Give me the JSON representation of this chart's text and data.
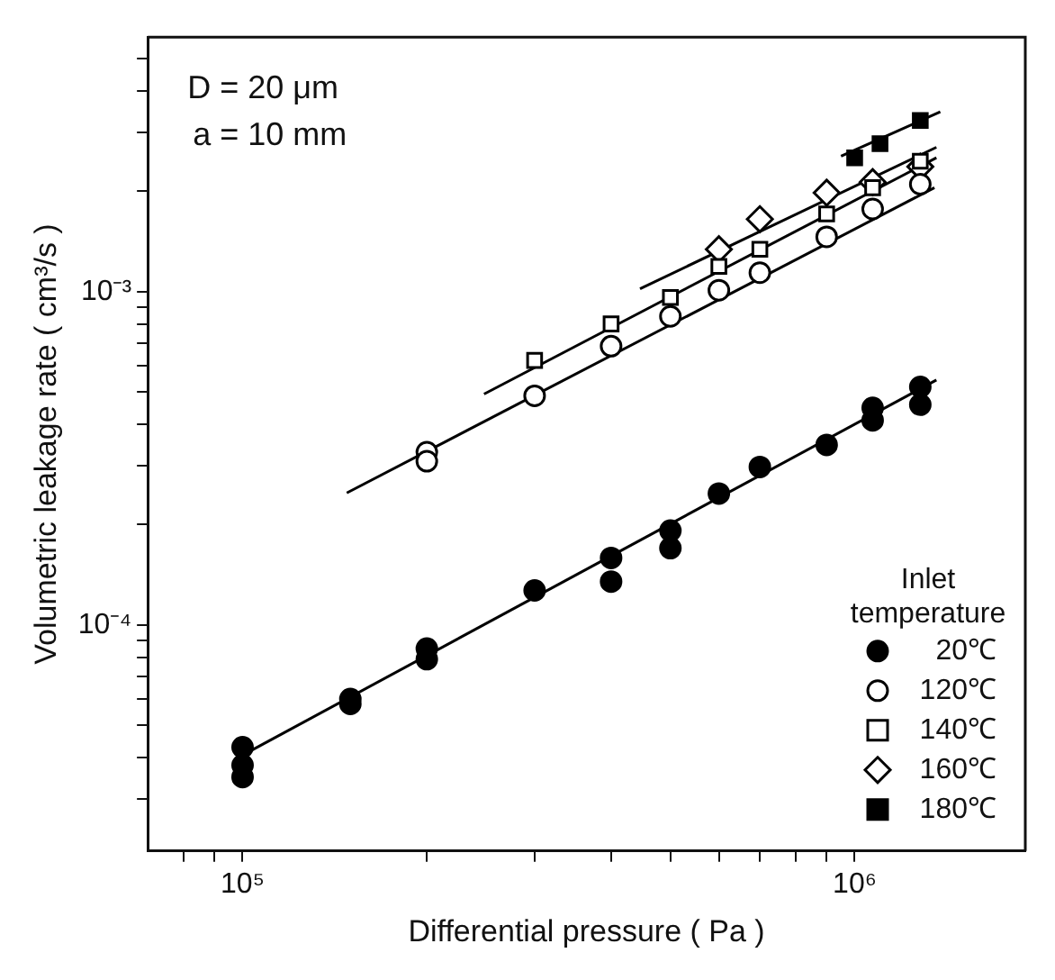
{
  "chart_data": {
    "type": "scatter",
    "xlabel": "Differential pressure ( Pa )",
    "ylabel": "Volumetric leakage rate ( cm³/s )",
    "legend_title": "Inlet temperature",
    "annotations": [
      "D = 20 μm",
      "a = 10 mm"
    ],
    "xlim": [
      70000,
      1900000
    ],
    "ylim": [
      2.1e-05,
      0.0058
    ],
    "xticks": [
      {
        "value": 80000,
        "label": null
      },
      {
        "value": 90000,
        "label": null
      },
      {
        "value": 100000,
        "label": "10⁵"
      },
      {
        "value": 200000,
        "label": null
      },
      {
        "value": 300000,
        "label": null
      },
      {
        "value": 400000,
        "label": null
      },
      {
        "value": 500000,
        "label": null
      },
      {
        "value": 600000,
        "label": null
      },
      {
        "value": 700000,
        "label": null
      },
      {
        "value": 800000,
        "label": null
      },
      {
        "value": 900000,
        "label": null
      },
      {
        "value": 1000000,
        "label": "10⁶"
      }
    ],
    "yticks": [
      {
        "value": 3e-05,
        "label": null
      },
      {
        "value": 4e-05,
        "label": null
      },
      {
        "value": 5e-05,
        "label": null
      },
      {
        "value": 6e-05,
        "label": null
      },
      {
        "value": 7e-05,
        "label": null
      },
      {
        "value": 8e-05,
        "label": null
      },
      {
        "value": 9e-05,
        "label": null
      },
      {
        "value": 0.0001,
        "label": "10⁻⁴"
      },
      {
        "value": 0.0002,
        "label": null
      },
      {
        "value": 0.0003,
        "label": null
      },
      {
        "value": 0.0004,
        "label": null
      },
      {
        "value": 0.0005,
        "label": null
      },
      {
        "value": 0.0006,
        "label": null
      },
      {
        "value": 0.0007,
        "label": null
      },
      {
        "value": 0.0008,
        "label": null
      },
      {
        "value": 0.0009,
        "label": null
      },
      {
        "value": 0.001,
        "label": "10⁻³"
      },
      {
        "value": 0.002,
        "label": null
      },
      {
        "value": 0.003,
        "label": null
      },
      {
        "value": 0.004,
        "label": null
      },
      {
        "value": 0.005,
        "label": null
      }
    ],
    "log": "xy",
    "grid": false,
    "legend": "bottom right",
    "series": [
      {
        "name": "20℃",
        "color": "#000000",
        "marker": "circle",
        "x": [
          100000,
          100000,
          100000,
          150000,
          150000,
          200000,
          200000,
          300000,
          400000,
          400000,
          500000,
          500000,
          600000,
          700000,
          900000,
          1070000,
          1070000,
          1280000,
          1280000
        ],
        "values": [
          4.3e-05,
          3.8e-05,
          3.5e-05,
          6e-05,
          5.8e-05,
          8.5e-05,
          7.9e-05,
          0.000127,
          0.000159,
          0.000135,
          0.000192,
          0.00017,
          0.000248,
          0.000298,
          0.000347,
          0.000448,
          0.000411,
          0.000518,
          0.000458
        ]
      },
      {
        "name": "120℃",
        "color": "#ffffff",
        "marker": "circle",
        "x": [
          200000,
          200000,
          300000,
          400000,
          500000,
          600000,
          700000,
          900000,
          1070000,
          1280000
        ],
        "values": [
          0.00033,
          0.00031,
          0.000487,
          0.000686,
          0.000843,
          0.00101,
          0.00114,
          0.00146,
          0.00177,
          0.0021
        ]
      },
      {
        "name": "140℃",
        "color": "#ffffff",
        "marker": "square",
        "x": [
          300000,
          400000,
          500000,
          600000,
          700000,
          900000,
          1070000,
          1280000
        ],
        "values": [
          0.000622,
          0.0008,
          0.00096,
          0.00119,
          0.00134,
          0.00171,
          0.00205,
          0.00246
        ]
      },
      {
        "name": "160℃",
        "color": "#ffffff",
        "marker": "diamond",
        "x": [
          600000,
          700000,
          900000,
          1070000,
          1280000
        ],
        "values": [
          0.00134,
          0.00165,
          0.00198,
          0.00213,
          0.00237
        ]
      },
      {
        "name": "180℃",
        "color": "#000000",
        "marker": "square",
        "x": [
          1000000,
          1100000,
          1280000
        ],
        "values": [
          0.00252,
          0.00278,
          0.00326
        ]
      },
      {
        "type": "line",
        "color": "#000000",
        "marker": "none",
        "x": [
          100000,
          1360000
        ],
        "values": [
          4.07e-05,
          0.000543
        ]
      },
      {
        "type": "line",
        "color": "#000000",
        "marker": "none",
        "x": [
          148000,
          1350000
        ],
        "values": [
          0.000249,
          0.00205
        ]
      },
      {
        "type": "line",
        "color": "#000000",
        "marker": "none",
        "x": [
          248000,
          1360000
        ],
        "values": [
          0.000493,
          0.00252
        ]
      },
      {
        "type": "line",
        "color": "#000000",
        "marker": "none",
        "x": [
          446000,
          1360000
        ],
        "values": [
          0.00102,
          0.00271
        ]
      },
      {
        "type": "line",
        "color": "#000000",
        "marker": "none",
        "x": [
          950000,
          1380000
        ],
        "values": [
          0.00255,
          0.00346
        ]
      }
    ]
  }
}
